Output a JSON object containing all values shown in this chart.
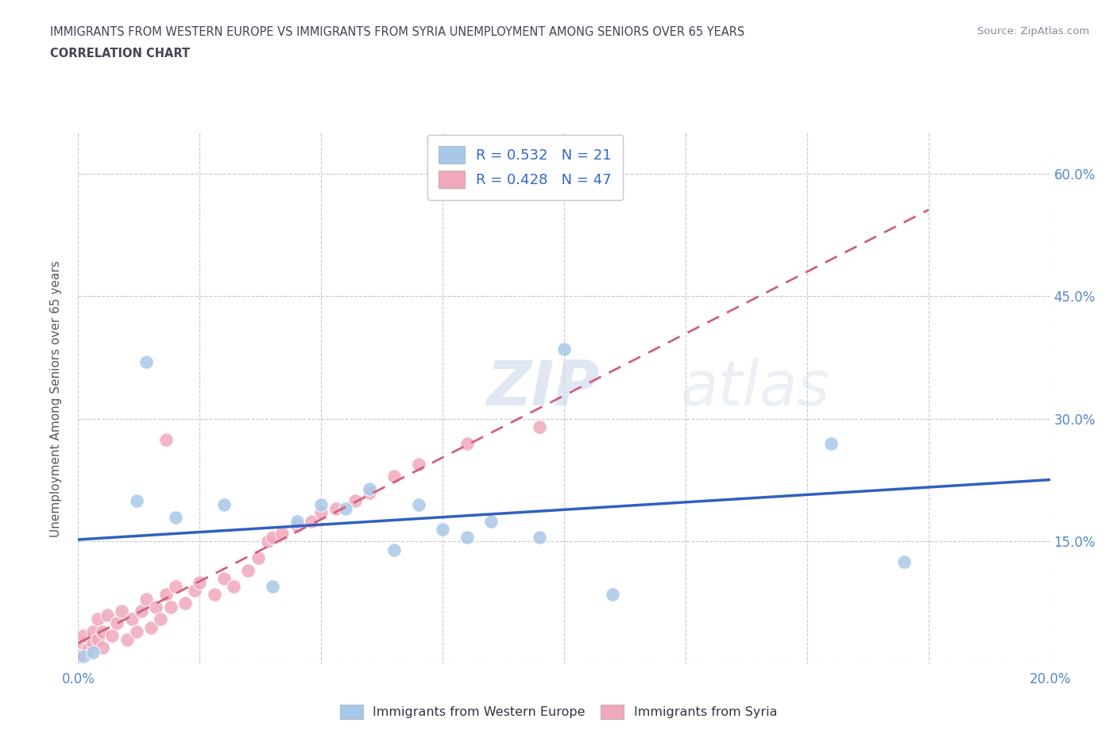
{
  "title_line1": "IMMIGRANTS FROM WESTERN EUROPE VS IMMIGRANTS FROM SYRIA UNEMPLOYMENT AMONG SENIORS OVER 65 YEARS",
  "title_line2": "CORRELATION CHART",
  "source": "Source: ZipAtlas.com",
  "ylabel": "Unemployment Among Seniors over 65 years",
  "xlim": [
    0.0,
    0.2
  ],
  "ylim": [
    0.0,
    0.65
  ],
  "watermark_zip": "ZIP",
  "watermark_atlas": "atlas",
  "legend_r1": "R = 0.532   N = 21",
  "legend_r2": "R = 0.428   N = 47",
  "blue_color": "#a8c8e8",
  "pink_color": "#f0a8bc",
  "trendline_blue_color": "#3060c0",
  "trendline_pink_color": "#d06080",
  "western_europe_x": [
    0.001,
    0.003,
    0.012,
    0.014,
    0.02,
    0.03,
    0.04,
    0.045,
    0.05,
    0.055,
    0.06,
    0.065,
    0.07,
    0.075,
    0.08,
    0.085,
    0.095,
    0.1,
    0.11,
    0.155,
    0.17
  ],
  "western_europe_y": [
    0.01,
    0.015,
    0.2,
    0.37,
    0.18,
    0.195,
    0.095,
    0.175,
    0.195,
    0.19,
    0.215,
    0.14,
    0.195,
    0.165,
    0.155,
    0.175,
    0.155,
    0.385,
    0.085,
    0.27,
    0.125
  ],
  "syria_x": [
    0.0,
    0.001,
    0.001,
    0.002,
    0.003,
    0.003,
    0.004,
    0.004,
    0.005,
    0.005,
    0.006,
    0.007,
    0.008,
    0.009,
    0.01,
    0.011,
    0.012,
    0.013,
    0.014,
    0.015,
    0.016,
    0.017,
    0.018,
    0.019,
    0.02,
    0.022,
    0.024,
    0.025,
    0.028,
    0.03,
    0.032,
    0.035,
    0.037,
    0.039,
    0.04,
    0.042,
    0.045,
    0.048,
    0.05,
    0.053,
    0.057,
    0.06,
    0.065,
    0.07,
    0.08,
    0.095,
    0.018
  ],
  "syria_y": [
    0.01,
    0.025,
    0.035,
    0.018,
    0.025,
    0.04,
    0.03,
    0.055,
    0.02,
    0.04,
    0.06,
    0.035,
    0.05,
    0.065,
    0.03,
    0.055,
    0.04,
    0.065,
    0.08,
    0.045,
    0.07,
    0.055,
    0.085,
    0.07,
    0.095,
    0.075,
    0.09,
    0.1,
    0.085,
    0.105,
    0.095,
    0.115,
    0.13,
    0.15,
    0.155,
    0.16,
    0.17,
    0.175,
    0.185,
    0.19,
    0.2,
    0.21,
    0.23,
    0.245,
    0.27,
    0.29,
    0.275
  ]
}
